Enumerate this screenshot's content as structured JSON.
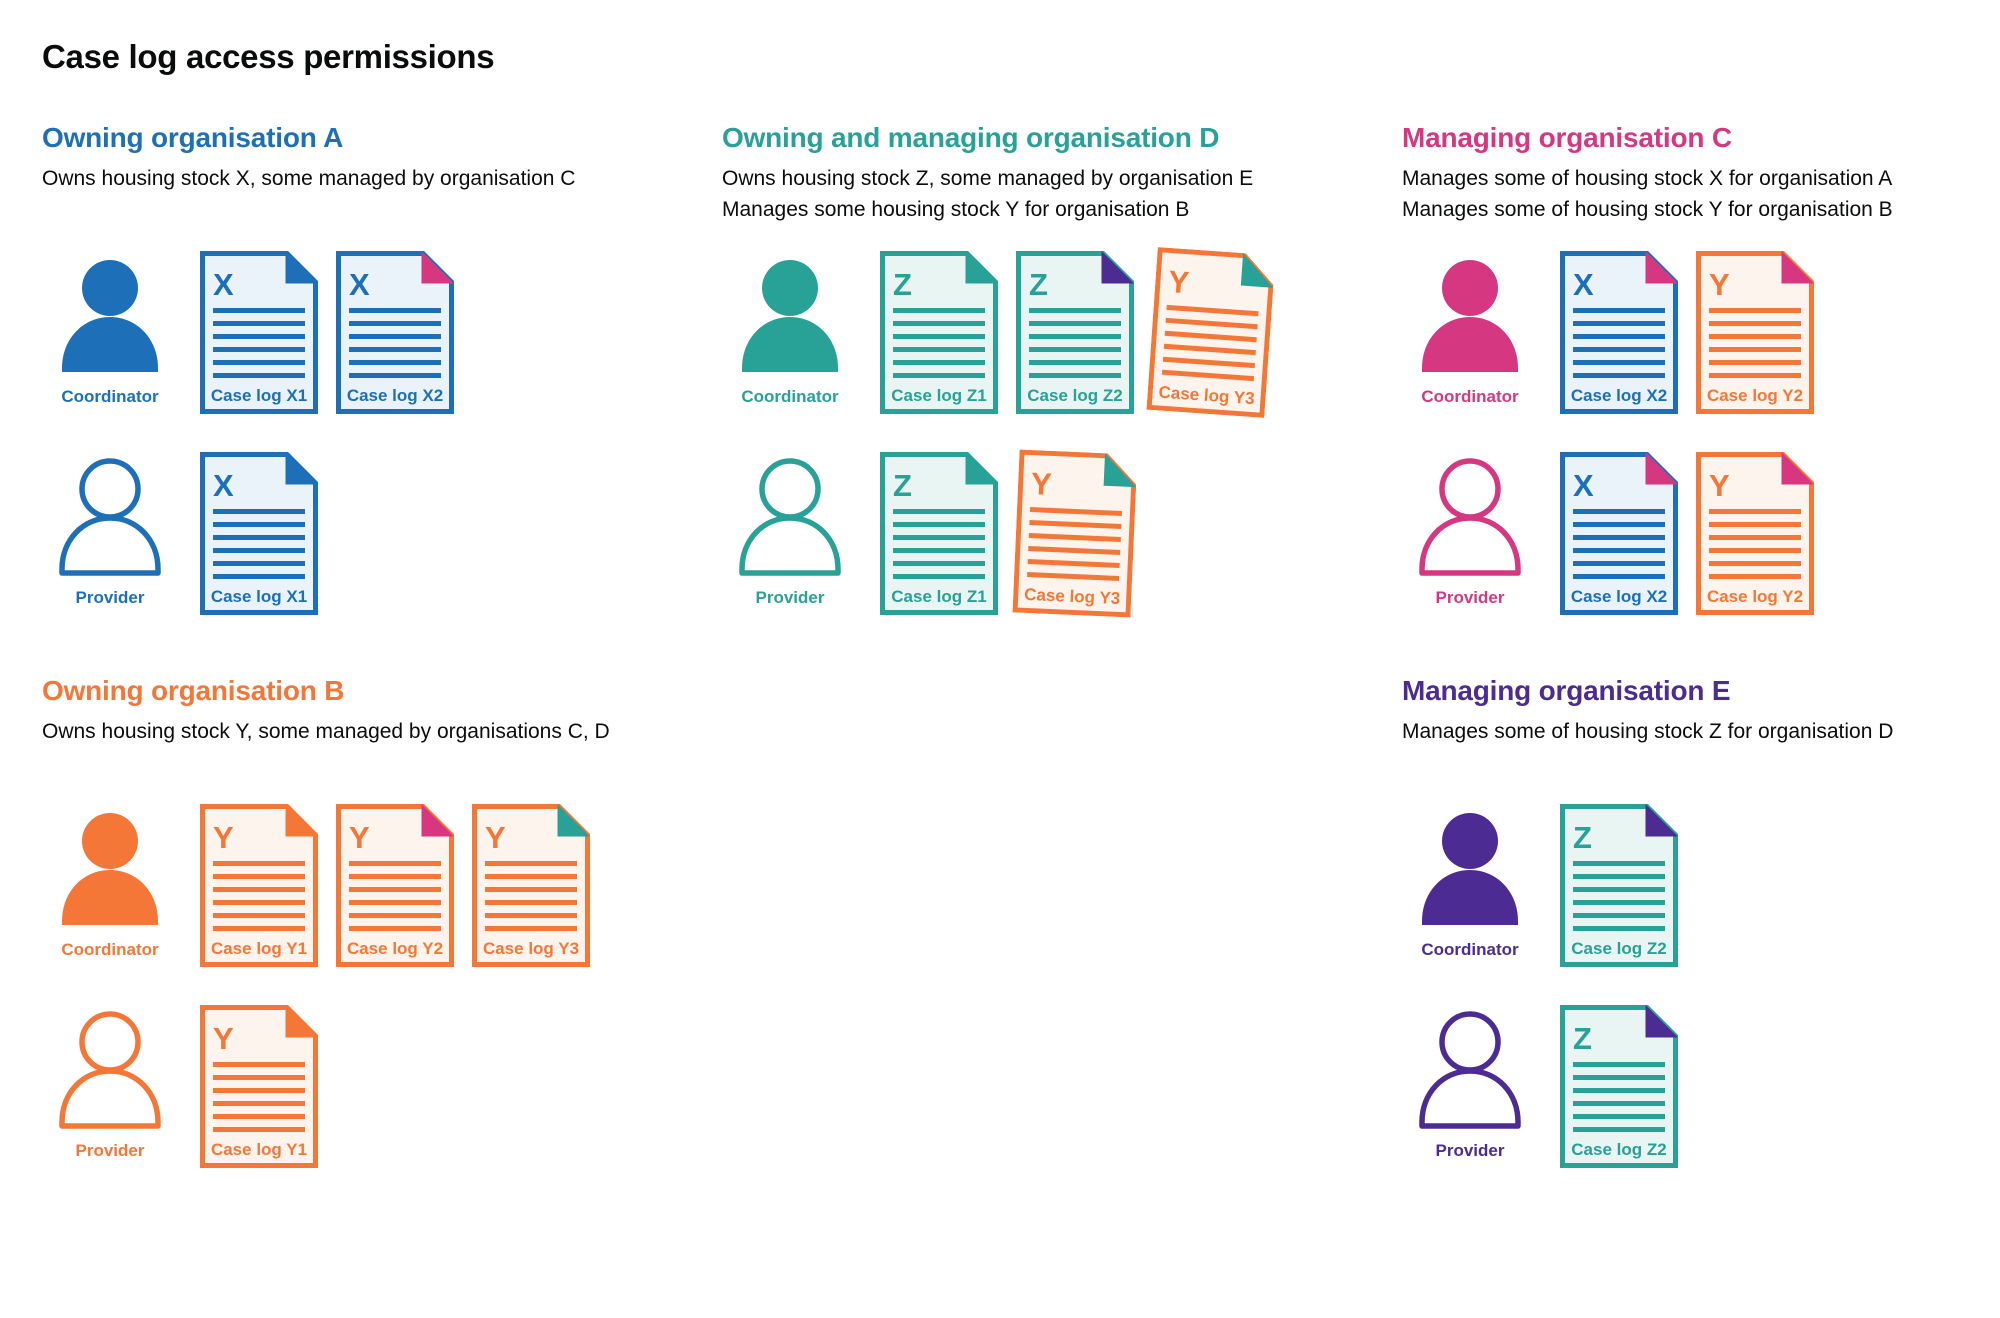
{
  "page": {
    "title": "Case log access permissions"
  },
  "colors": {
    "blue": {
      "main": "#1d70b8",
      "tint": "#eaf2fa"
    },
    "teal": {
      "main": "#28a197",
      "tint": "#e9f5f3"
    },
    "orange": {
      "main": "#f47738",
      "tint": "#fdf4ed"
    },
    "pink": {
      "main": "#d53880",
      "tint": "#fbebf2"
    },
    "purple": {
      "main": "#4c2c92",
      "tint": "#ece8f4"
    },
    "text": "#0b0c0c",
    "background": "#ffffff"
  },
  "roles": {
    "coordinator": "Coordinator",
    "provider": "Provider"
  },
  "sections": [
    {
      "id": "org-a",
      "title": "Owning organisation A",
      "org_color": "blue",
      "desc": [
        "Owns housing stock X, some managed by organisation C"
      ],
      "grid": {
        "col": 1,
        "row": 1
      },
      "rows": [
        {
          "role": "Coordinator",
          "icon": "coordinator-icon",
          "filled": true,
          "docs": [
            {
              "letter": "X",
              "doc_color": "blue",
              "fold_color": "blue",
              "label": "Case log X1"
            },
            {
              "letter": "X",
              "doc_color": "blue",
              "fold_color": "pink",
              "label": "Case log X2"
            }
          ]
        },
        {
          "role": "Provider",
          "icon": "provider-icon",
          "filled": false,
          "docs": [
            {
              "letter": "X",
              "doc_color": "blue",
              "fold_color": "blue",
              "label": "Case log X1"
            }
          ]
        }
      ]
    },
    {
      "id": "org-d",
      "title": "Owning and managing organisation D",
      "org_color": "teal",
      "desc": [
        "Owns housing stock Z, some managed by organisation E",
        "Manages some housing stock Y for organisation B"
      ],
      "grid": {
        "col": 2,
        "row": 1
      },
      "rows": [
        {
          "role": "Coordinator",
          "icon": "coordinator-icon",
          "filled": true,
          "docs": [
            {
              "letter": "Z",
              "doc_color": "teal",
              "fold_color": "teal",
              "label": "Case log Z1"
            },
            {
              "letter": "Z",
              "doc_color": "teal",
              "fold_color": "purple",
              "label": "Case log Z2"
            },
            {
              "letter": "Y",
              "doc_color": "orange",
              "fold_color": "teal",
              "label": "Case log Y3",
              "tilt": 4
            }
          ]
        },
        {
          "role": "Provider",
          "icon": "provider-icon",
          "filled": false,
          "docs": [
            {
              "letter": "Z",
              "doc_color": "teal",
              "fold_color": "teal",
              "label": "Case log Z1"
            },
            {
              "letter": "Y",
              "doc_color": "orange",
              "fold_color": "teal",
              "label": "Case log Y3",
              "tilt": 2.5
            }
          ]
        }
      ]
    },
    {
      "id": "org-c",
      "title": "Managing organisation C",
      "org_color": "pink",
      "desc": [
        "Manages some of housing stock X for organisation A",
        "Manages some of housing stock Y for organisation B"
      ],
      "grid": {
        "col": 3,
        "row": 1
      },
      "rows": [
        {
          "role": "Coordinator",
          "icon": "coordinator-icon",
          "filled": true,
          "docs": [
            {
              "letter": "X",
              "doc_color": "blue",
              "fold_color": "pink",
              "label": "Case log X2"
            },
            {
              "letter": "Y",
              "doc_color": "orange",
              "fold_color": "pink",
              "label": "Case log Y2"
            }
          ]
        },
        {
          "role": "Provider",
          "icon": "provider-icon",
          "filled": false,
          "docs": [
            {
              "letter": "X",
              "doc_color": "blue",
              "fold_color": "pink",
              "label": "Case log X2"
            },
            {
              "letter": "Y",
              "doc_color": "orange",
              "fold_color": "pink",
              "label": "Case log Y2"
            }
          ]
        }
      ]
    },
    {
      "id": "org-b",
      "title": "Owning organisation B",
      "org_color": "orange",
      "desc": [
        "Owns housing stock Y, some managed by organisations C, D"
      ],
      "grid": {
        "col": 1,
        "row": 2
      },
      "rows": [
        {
          "role": "Coordinator",
          "icon": "coordinator-icon",
          "filled": true,
          "docs": [
            {
              "letter": "Y",
              "doc_color": "orange",
              "fold_color": "orange",
              "label": "Case log Y1"
            },
            {
              "letter": "Y",
              "doc_color": "orange",
              "fold_color": "pink",
              "label": "Case log Y2"
            },
            {
              "letter": "Y",
              "doc_color": "orange",
              "fold_color": "teal",
              "label": "Case log Y3"
            }
          ]
        },
        {
          "role": "Provider",
          "icon": "provider-icon",
          "filled": false,
          "docs": [
            {
              "letter": "Y",
              "doc_color": "orange",
              "fold_color": "orange",
              "label": "Case log Y1"
            }
          ]
        }
      ]
    },
    {
      "id": "org-e",
      "title": "Managing organisation E",
      "org_color": "purple",
      "desc": [
        "Manages some of housing stock Z for organisation D"
      ],
      "grid": {
        "col": 3,
        "row": 2
      },
      "rows": [
        {
          "role": "Coordinator",
          "icon": "coordinator-icon",
          "filled": true,
          "docs": [
            {
              "letter": "Z",
              "doc_color": "teal",
              "fold_color": "purple",
              "label": "Case log Z2"
            }
          ]
        },
        {
          "role": "Provider",
          "icon": "provider-icon",
          "filled": false,
          "docs": [
            {
              "letter": "Z",
              "doc_color": "teal",
              "fold_color": "purple",
              "label": "Case log Z2"
            }
          ]
        }
      ]
    }
  ]
}
